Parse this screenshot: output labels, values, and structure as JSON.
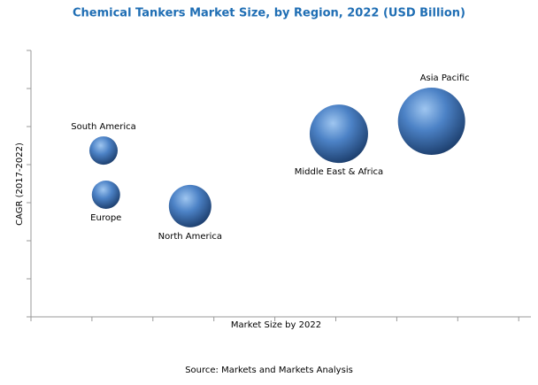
{
  "chart_data": {
    "type": "bubble",
    "title": "Chemical Tankers Market Size, by Region, 2022 (USD Billion)",
    "xlabel": "Market Size by 2022",
    "ylabel": "CAGR (2017-2022)",
    "source": "Source: Markets and Markets Analysis",
    "labels": [
      "South America",
      "Europe",
      "North America",
      "Middle East & Africa",
      "Asia Pacific"
    ],
    "x": [
      1.19,
      1.23,
      2.61,
      5.05,
      6.57
    ],
    "values": [
      4.37,
      3.21,
      2.91,
      4.81,
      5.14
    ],
    "sizes": [
      16,
      16,
      24,
      33,
      38
    ],
    "color": "#3f76b8",
    "xlim": [
      0,
      8.2
    ],
    "ylim": [
      0,
      7
    ],
    "xticks": [
      0,
      1,
      2,
      3,
      4,
      5,
      6,
      7,
      8
    ],
    "yticks": [
      0,
      1,
      2,
      3,
      4,
      5,
      6,
      7
    ]
  }
}
